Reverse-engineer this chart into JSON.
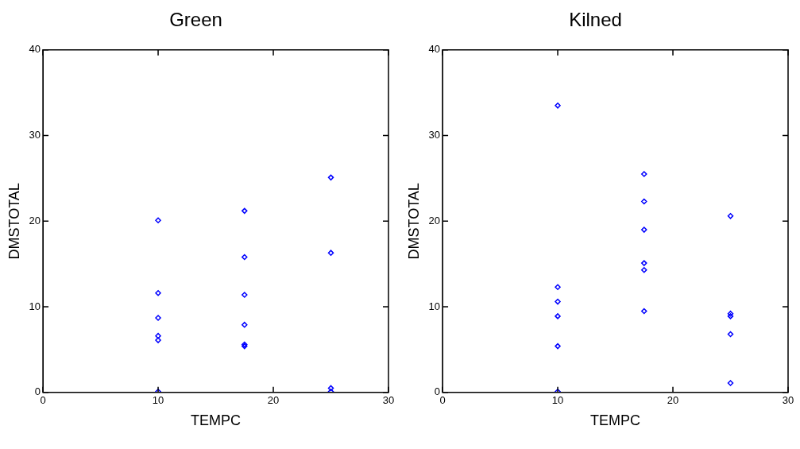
{
  "chart_data": [
    {
      "type": "scatter",
      "title": "Green",
      "xlabel": "TEMPC",
      "ylabel": "DMSTOTAL",
      "marker": "diamond",
      "xlim": [
        0,
        30
      ],
      "xticks": [
        0,
        10,
        20,
        30
      ],
      "ylim": [
        0,
        40
      ],
      "yticks": [
        0,
        10,
        20,
        30,
        40
      ],
      "series": [
        {
          "color": "#0000ff",
          "x": [
            10,
            10,
            10,
            10,
            10,
            10,
            17.5,
            17.5,
            17.5,
            17.5,
            17.5,
            17.5,
            25,
            25,
            25,
            25
          ],
          "values": [
            20.1,
            11.6,
            8.7,
            6.6,
            6.1,
            0.1,
            21.2,
            15.8,
            11.4,
            7.9,
            5.6,
            5.4,
            25.1,
            16.3,
            0.5,
            0.1
          ]
        }
      ]
    },
    {
      "type": "scatter",
      "title": "Kilned",
      "xlabel": "TEMPC",
      "ylabel": "DMSTOTAL",
      "marker": "diamond",
      "xlim": [
        0,
        30
      ],
      "xticks": [
        0,
        10,
        20,
        30
      ],
      "ylim": [
        0,
        40
      ],
      "yticks": [
        0,
        10,
        20,
        30,
        40
      ],
      "series": [
        {
          "color": "#0000ff",
          "x": [
            10,
            10,
            10,
            10,
            10,
            10,
            17.5,
            17.5,
            17.5,
            17.5,
            17.5,
            17.5,
            25,
            25,
            25,
            25,
            25
          ],
          "values": [
            33.5,
            12.3,
            10.6,
            8.9,
            5.4,
            0.1,
            25.5,
            22.3,
            19.0,
            15.1,
            14.3,
            9.5,
            20.6,
            9.2,
            8.9,
            6.8,
            1.1
          ]
        }
      ]
    }
  ]
}
